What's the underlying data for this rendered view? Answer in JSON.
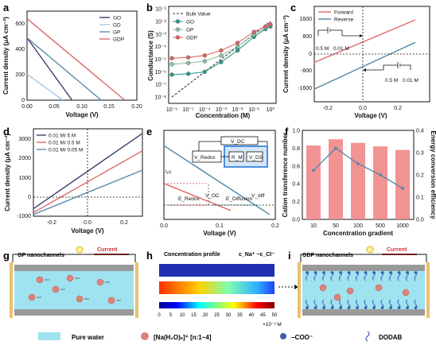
{
  "panels": {
    "a": {
      "label": "a",
      "chart_data": {
        "type": "line",
        "xlabel": "Voltage (V)",
        "ylabel": "Current density (μA cm⁻²)",
        "xlim": [
          0.0,
          0.2
        ],
        "ylim": [
          0,
          700
        ],
        "x_ticks": [
          "0.00",
          "0.05",
          "0.10",
          "0.15",
          "0.20"
        ],
        "y_ticks": [
          "0",
          "200",
          "400",
          "600"
        ],
        "legend": "top-right",
        "series": [
          {
            "name": "GO",
            "color": "#3a3f66",
            "x": [
              0,
              0.082
            ],
            "y": [
              490,
              0
            ]
          },
          {
            "name": "GD",
            "color": "#a9c9e6",
            "x": [
              0,
              0.065
            ],
            "y": [
              205,
              0
            ]
          },
          {
            "name": "GP",
            "color": "#5a8aa8",
            "x": [
              0,
              0.135
            ],
            "y": [
              490,
              0
            ]
          },
          {
            "name": "GDP",
            "color": "#e06666",
            "x": [
              0,
              0.178
            ],
            "y": [
              640,
              0
            ]
          }
        ]
      }
    },
    "b": {
      "label": "b",
      "chart_data": {
        "type": "line",
        "xlabel": "Concentration (M)",
        "ylabel": "Conductance (S)",
        "y_scale": "log",
        "x_scale": "log",
        "x_ticks": [
          "10⁻⁶",
          "10⁻⁵",
          "10⁻⁴",
          "10⁻³",
          "10⁻²",
          "10⁻¹",
          "10⁰"
        ],
        "y_ticks": [
          "10⁻⁸",
          "10⁻⁷",
          "10⁻⁶",
          "10⁻⁵",
          "10⁻⁴",
          "10⁻³",
          "10⁻²",
          "10⁻¹"
        ],
        "legend": "top-left",
        "x": [
          1e-06,
          1e-05,
          0.0001,
          0.001,
          0.01,
          0.1,
          0.5,
          1
        ],
        "series": [
          {
            "name": "Bulk Value",
            "color": "#333333",
            "style": "dashed",
            "y": [
              1e-08,
              1e-07,
              1e-06,
              1e-05,
              0.0001,
              0.001,
              0.005,
              0.01
            ]
          },
          {
            "name": "GO",
            "color": "#2a9d8f",
            "y": [
              6e-07,
              7e-07,
              1e-06,
              6e-06,
              5e-05,
              0.0006,
              0.0025,
              0.004
            ]
          },
          {
            "name": "GP",
            "color": "#8fc1a8",
            "y": [
              4e-06,
              5e-06,
              7e-06,
              2e-05,
              0.0001,
              0.0009,
              0.003,
              0.005
            ]
          },
          {
            "name": "GDP",
            "color": "#e06666",
            "y": [
              1.2e-05,
              1.4e-05,
              2e-05,
              5e-05,
              0.0002,
              0.0015,
              0.004,
              0.006
            ]
          }
        ]
      }
    },
    "c": {
      "label": "c",
      "chart_data": {
        "type": "line",
        "xlabel": "Voltage (V)",
        "ylabel": "Current density (μA cm⁻²)",
        "xlim": [
          -0.3,
          0.35
        ],
        "ylim": [
          -2000,
          2000
        ],
        "x_ticks": [
          "-0.2",
          "0.0",
          "0.2"
        ],
        "y_ticks": [
          "-1600",
          "-800",
          "0",
          "800",
          "1600"
        ],
        "legend": "top-left",
        "series": [
          {
            "name": "Forward",
            "color": "#e06666",
            "x": [
              -0.28,
              0.3
            ],
            "y": [
              -400,
              1600
            ]
          },
          {
            "name": "Reverse",
            "color": "#4f86a8",
            "x": [
              -0.28,
              0.3
            ],
            "y": [
              -1650,
              550
            ]
          }
        ],
        "annotations": [
          {
            "text": "0.5 M",
            "at": "forward-inset-left"
          },
          {
            "text": "0.01 M",
            "at": "forward-inset-right"
          },
          {
            "text": "0.5 M",
            "at": "reverse-inset-left"
          },
          {
            "text": "0.01 M",
            "at": "reverse-inset-right"
          }
        ]
      }
    },
    "d": {
      "label": "d",
      "chart_data": {
        "type": "line",
        "xlabel": "Voltage (V)",
        "ylabel": "Current density (μA cm⁻²)",
        "xlim": [
          -0.3,
          0.3
        ],
        "ylim": [
          -1000,
          3500
        ],
        "x_ticks": [
          "-0.2",
          "0.0",
          "0.2"
        ],
        "y_ticks": [
          "-1000",
          "0",
          "1000",
          "2000",
          "3000"
        ],
        "legend": "top-left",
        "series": [
          {
            "name": "0.01 M/ 5 M",
            "color": "#3a3f66",
            "x": [
              -0.3,
              0.3
            ],
            "y": [
              -600,
              3300
            ]
          },
          {
            "name": "0.01 M/ 0.5 M",
            "color": "#e06666",
            "x": [
              -0.3,
              0.3
            ],
            "y": [
              -800,
              2400
            ]
          },
          {
            "name": "0.01 M/ 0.05 M",
            "color": "#5a8aa8",
            "x": [
              -0.3,
              0.3
            ],
            "y": [
              -900,
              1400
            ]
          }
        ]
      }
    },
    "e": {
      "label": "e",
      "chart_data": {
        "type": "line",
        "xlabel": "Voltage (V)",
        "ylabel": "",
        "xlim": [
          0.0,
          0.2
        ],
        "x_ticks": [
          "0.0",
          "0.1",
          "0.2"
        ],
        "series": [
          {
            "name": "blue",
            "color": "#4f86a8",
            "x": [
              0,
              0.19
            ],
            "y": [
              440,
              -70
            ]
          },
          {
            "name": "red",
            "color": "#e06666",
            "x": [
              0,
              0.12
            ],
            "y": [
              160,
              -40
            ]
          }
        ],
        "annotations": [
          "Iₒc",
          "E_Redox",
          "V_OC",
          "E_Diffusion",
          "V_diff"
        ],
        "circuit": {
          "labels": [
            "V_DC",
            "V_Redox",
            "R_M",
            "V_DS"
          ]
        }
      }
    },
    "f": {
      "label": "f",
      "chart_data": {
        "type": "bar",
        "categories": [
          "10",
          "50",
          "100",
          "500",
          "1000"
        ],
        "xlabel": "Concentration gradient",
        "ylabel": "Cation transference number",
        "y2label": "Energy conversion efficiency",
        "ylim": [
          0.0,
          1.0
        ],
        "y2lim": [
          0.0,
          0.4
        ],
        "y_ticks": [
          "0.0",
          "0.2",
          "0.4",
          "0.6",
          "0.8",
          "1.0"
        ],
        "y2_ticks": [
          "0.0",
          "0.1",
          "0.2",
          "0.3",
          "0.4"
        ],
        "series": [
          {
            "name": "Cation transference number",
            "kind": "bar",
            "color": "#f08080",
            "values": [
              0.83,
              0.9,
              0.86,
              0.82,
              0.78
            ]
          },
          {
            "name": "Energy conversion efficiency",
            "kind": "line",
            "axis": "right",
            "color": "#4f86a8",
            "values": [
              0.22,
              0.32,
              0.25,
              0.2,
              0.14
            ]
          }
        ]
      }
    },
    "g": {
      "label": "g",
      "title": "GP nanochannels",
      "current": "Current"
    },
    "h": {
      "label": "h",
      "title": "Concentration profile",
      "ions": "c_Na⁺ −c_Cl⁻",
      "colorbar_ticks": [
        "0",
        "5",
        "10",
        "15",
        "20",
        "25",
        "30",
        "35",
        "40",
        "45",
        "50"
      ],
      "colorbar_unit": "×10⁻³ M"
    },
    "i": {
      "label": "i",
      "title": "GDP nanochannels",
      "current": "Current"
    }
  },
  "legend_bottom": {
    "water": "Pure water",
    "cation": "[Na(H₂O)ₙ]⁺   [n:1~4]",
    "anion": "−COO⁻",
    "dodab": "DODAB"
  }
}
